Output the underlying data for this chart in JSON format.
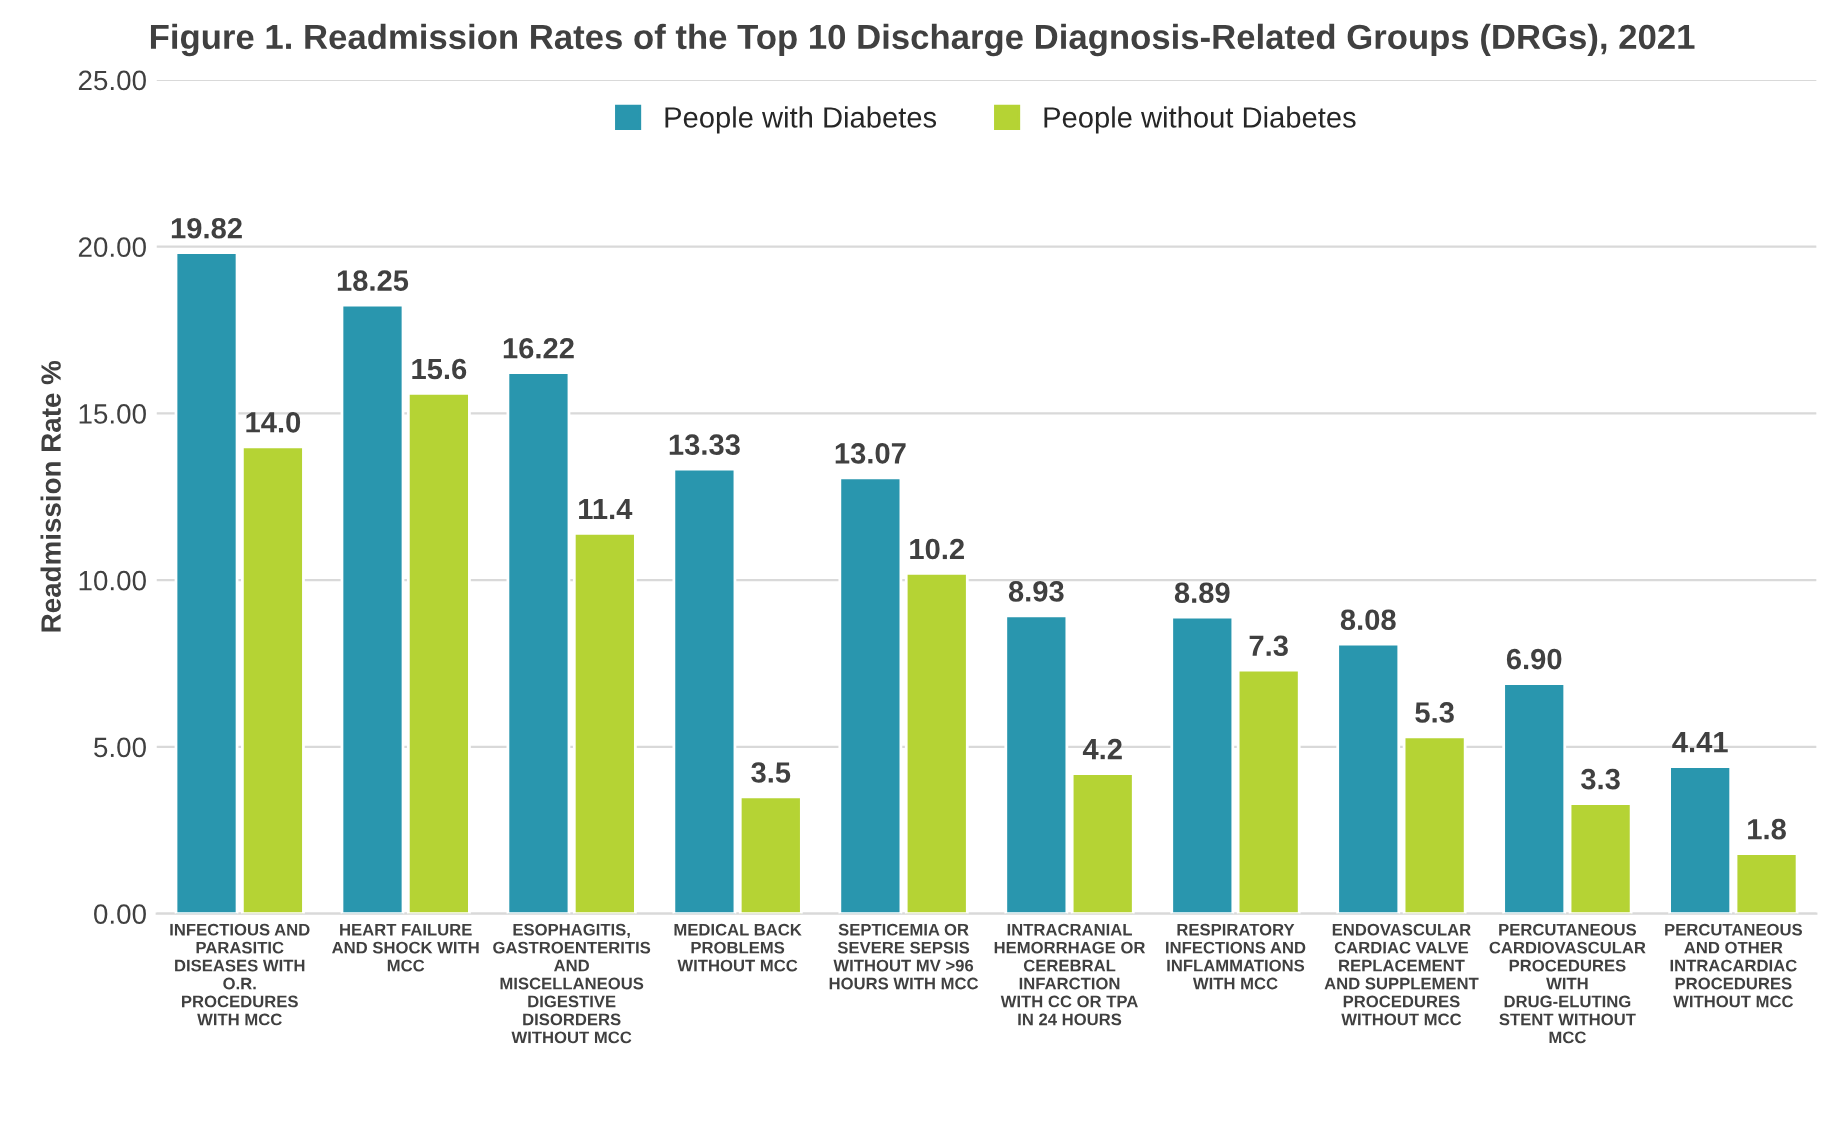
{
  "chart_data": {
    "type": "bar",
    "title": "Figure 1. Readmission Rates of the Top 10 Discharge Diagnosis-Related Groups (DRGs), 2021",
    "ylabel": "Readmission Rate %",
    "categories": [
      "INFECTIOUS AND PARASITIC DISEASES WITH O.R. PROCEDURES WITH MCC",
      "HEART FAILURE AND SHOCK WITH MCC",
      "ESOPHAGITIS, GASTROENTERITIS AND MISCELLANEOUS DIGESTIVE DISORDERS WITHOUT MCC",
      "MEDICAL BACK PROBLEMS WITHOUT MCC",
      "SEPTICEMIA OR SEVERE SEPSIS WITHOUT MV >96 HOURS WITH MCC",
      "INTRACRANIAL HEMORRHAGE OR CEREBRAL INFARCTION WITH CC OR TPA IN 24 HOURS",
      "RESPIRATORY INFECTIONS AND INFLAMMATIONS WITH MCC",
      "ENDOVASCULAR CARDIAC VALVE REPLACEMENT AND SUPPLEMENT PROCEDURES WITHOUT MCC",
      "PERCUTANEOUS CARDIOVASCULAR PROCEDURES WITH DRUG-ELUTING STENT WITHOUT MCC",
      "PERCUTANEOUS AND OTHER INTRACARDIAC PROCEDURES WITHOUT MCC"
    ],
    "series": [
      {
        "name": "People with Diabetes",
        "color": "#2996ae",
        "values": [
          19.82,
          18.25,
          16.22,
          13.33,
          13.07,
          8.93,
          8.89,
          8.08,
          6.9,
          4.41
        ],
        "value_labels": [
          "19.82",
          "18.25",
          "16.22",
          "13.33",
          "13.07",
          "8.93",
          "8.89",
          "8.08",
          "6.90",
          "4.41"
        ]
      },
      {
        "name": "People without Diabetes",
        "color": "#b5d334",
        "values": [
          14.0,
          15.6,
          11.4,
          3.5,
          10.2,
          4.2,
          7.3,
          5.3,
          3.3,
          1.8
        ],
        "value_labels": [
          "14.0",
          "15.6",
          "11.4",
          "3.5",
          "10.2",
          "4.2",
          "7.3",
          "5.3",
          "3.3",
          "1.8"
        ]
      }
    ],
    "ylim": [
      0,
      25
    ],
    "yticks": [
      {
        "value": 0,
        "label": "0.00"
      },
      {
        "value": 5,
        "label": "5.00"
      },
      {
        "value": 10,
        "label": "10.00"
      },
      {
        "value": 15,
        "label": "15.00"
      },
      {
        "value": 20,
        "label": "20.00"
      },
      {
        "value": 25,
        "label": "25.00"
      }
    ],
    "grid": "y",
    "legend": "top"
  }
}
